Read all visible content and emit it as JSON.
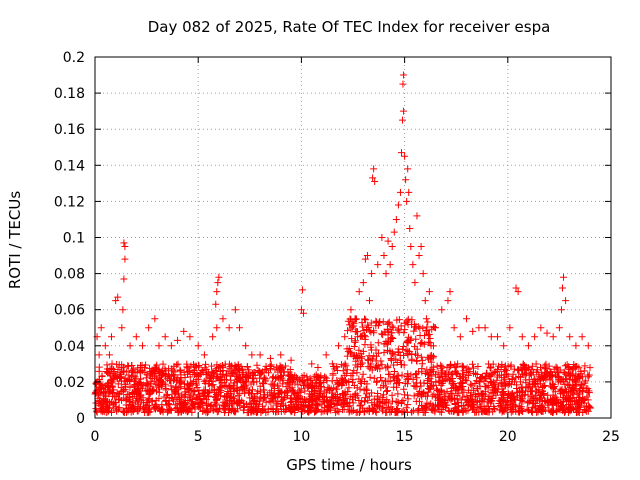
{
  "chart_data": {
    "type": "scatter",
    "title": "Day 082 of 2025, Rate Of TEC Index for receiver espa",
    "xlabel": "GPS time / hours",
    "ylabel": "ROTI / TECUs",
    "xlim": [
      0,
      25
    ],
    "ylim": [
      0,
      0.2
    ],
    "xticks": [
      0,
      5,
      10,
      15,
      20,
      25
    ],
    "yticks": [
      0,
      0.02,
      0.04,
      0.06,
      0.08,
      0.1,
      0.12,
      0.14,
      0.16,
      0.18,
      0.2
    ],
    "xtick_labels": [
      "0",
      "5",
      "10",
      "15",
      "20",
      "25"
    ],
    "ytick_labels": [
      "0",
      "0.02",
      "0.04",
      "0.06",
      "0.08",
      "0.1",
      "0.12",
      "0.14",
      "0.16",
      "0.18",
      "0.2"
    ],
    "grid": true,
    "marker": "+",
    "series": [
      {
        "name": "ROTI",
        "color": "#ff0000",
        "points": [
          [
            0.1,
            0.045
          ],
          [
            0.2,
            0.035
          ],
          [
            0.3,
            0.05
          ],
          [
            0.5,
            0.04
          ],
          [
            0.7,
            0.035
          ],
          [
            0.8,
            0.045
          ],
          [
            1.0,
            0.065
          ],
          [
            1.1,
            0.067
          ],
          [
            1.3,
            0.05
          ],
          [
            1.35,
            0.06
          ],
          [
            1.4,
            0.077
          ],
          [
            1.45,
            0.088
          ],
          [
            1.4,
            0.097
          ],
          [
            1.45,
            0.095
          ],
          [
            1.7,
            0.04
          ],
          [
            2.0,
            0.045
          ],
          [
            2.3,
            0.04
          ],
          [
            2.6,
            0.05
          ],
          [
            2.9,
            0.055
          ],
          [
            3.1,
            0.04
          ],
          [
            3.4,
            0.045
          ],
          [
            3.7,
            0.04
          ],
          [
            4.0,
            0.043
          ],
          [
            4.3,
            0.048
          ],
          [
            4.6,
            0.045
          ],
          [
            5.0,
            0.04
          ],
          [
            5.3,
            0.035
          ],
          [
            5.7,
            0.045
          ],
          [
            5.9,
            0.05
          ],
          [
            5.85,
            0.063
          ],
          [
            5.9,
            0.07
          ],
          [
            5.95,
            0.075
          ],
          [
            6.0,
            0.078
          ],
          [
            6.2,
            0.055
          ],
          [
            6.5,
            0.05
          ],
          [
            6.8,
            0.06
          ],
          [
            7.0,
            0.05
          ],
          [
            7.3,
            0.04
          ],
          [
            7.6,
            0.035
          ],
          [
            8.0,
            0.035
          ],
          [
            8.5,
            0.033
          ],
          [
            9.0,
            0.035
          ],
          [
            9.5,
            0.032
          ],
          [
            10.0,
            0.06
          ],
          [
            10.1,
            0.058
          ],
          [
            10.05,
            0.071
          ],
          [
            10.5,
            0.03
          ],
          [
            10.8,
            0.028
          ],
          [
            11.2,
            0.035
          ],
          [
            11.5,
            0.03
          ],
          [
            11.8,
            0.04
          ],
          [
            12.1,
            0.045
          ],
          [
            12.4,
            0.06
          ],
          [
            12.6,
            0.055
          ],
          [
            12.8,
            0.07
          ],
          [
            13.0,
            0.075
          ],
          [
            13.1,
            0.088
          ],
          [
            13.2,
            0.09
          ],
          [
            13.3,
            0.065
          ],
          [
            13.4,
            0.08
          ],
          [
            13.45,
            0.133
          ],
          [
            13.5,
            0.138
          ],
          [
            13.55,
            0.131
          ],
          [
            13.7,
            0.085
          ],
          [
            13.9,
            0.1
          ],
          [
            14.0,
            0.09
          ],
          [
            14.1,
            0.08
          ],
          [
            14.2,
            0.098
          ],
          [
            14.3,
            0.085
          ],
          [
            14.4,
            0.095
          ],
          [
            14.5,
            0.103
          ],
          [
            14.6,
            0.11
          ],
          [
            14.7,
            0.118
          ],
          [
            14.8,
            0.125
          ],
          [
            14.85,
            0.147
          ],
          [
            14.9,
            0.165
          ],
          [
            14.95,
            0.17
          ],
          [
            14.92,
            0.185
          ],
          [
            14.95,
            0.19
          ],
          [
            15.0,
            0.145
          ],
          [
            15.05,
            0.132
          ],
          [
            15.1,
            0.12
          ],
          [
            15.15,
            0.138
          ],
          [
            15.2,
            0.125
          ],
          [
            15.25,
            0.105
          ],
          [
            15.3,
            0.095
          ],
          [
            15.4,
            0.085
          ],
          [
            15.5,
            0.075
          ],
          [
            15.6,
            0.112
          ],
          [
            15.7,
            0.09
          ],
          [
            15.8,
            0.095
          ],
          [
            15.9,
            0.08
          ],
          [
            16.0,
            0.065
          ],
          [
            16.2,
            0.07
          ],
          [
            16.5,
            0.05
          ],
          [
            16.8,
            0.06
          ],
          [
            17.1,
            0.065
          ],
          [
            17.2,
            0.07
          ],
          [
            17.4,
            0.05
          ],
          [
            17.7,
            0.045
          ],
          [
            18.0,
            0.055
          ],
          [
            18.3,
            0.048
          ],
          [
            18.6,
            0.05
          ],
          [
            18.9,
            0.05
          ],
          [
            19.2,
            0.045
          ],
          [
            19.5,
            0.045
          ],
          [
            19.8,
            0.04
          ],
          [
            20.1,
            0.05
          ],
          [
            20.4,
            0.072
          ],
          [
            20.5,
            0.07
          ],
          [
            20.7,
            0.045
          ],
          [
            21.0,
            0.04
          ],
          [
            21.3,
            0.045
          ],
          [
            21.6,
            0.05
          ],
          [
            21.9,
            0.047
          ],
          [
            22.2,
            0.045
          ],
          [
            22.5,
            0.05
          ],
          [
            22.6,
            0.06
          ],
          [
            22.65,
            0.072
          ],
          [
            22.7,
            0.078
          ],
          [
            22.8,
            0.065
          ],
          [
            23.0,
            0.045
          ],
          [
            23.3,
            0.04
          ],
          [
            23.6,
            0.045
          ],
          [
            23.9,
            0.04
          ]
        ]
      }
    ],
    "dense_band": {
      "note": "dense cloud of ROTI samples across the full day",
      "x_start": 0.0,
      "x_end": 24.0,
      "base_low": 0.003,
      "base_high": 0.03
    }
  }
}
